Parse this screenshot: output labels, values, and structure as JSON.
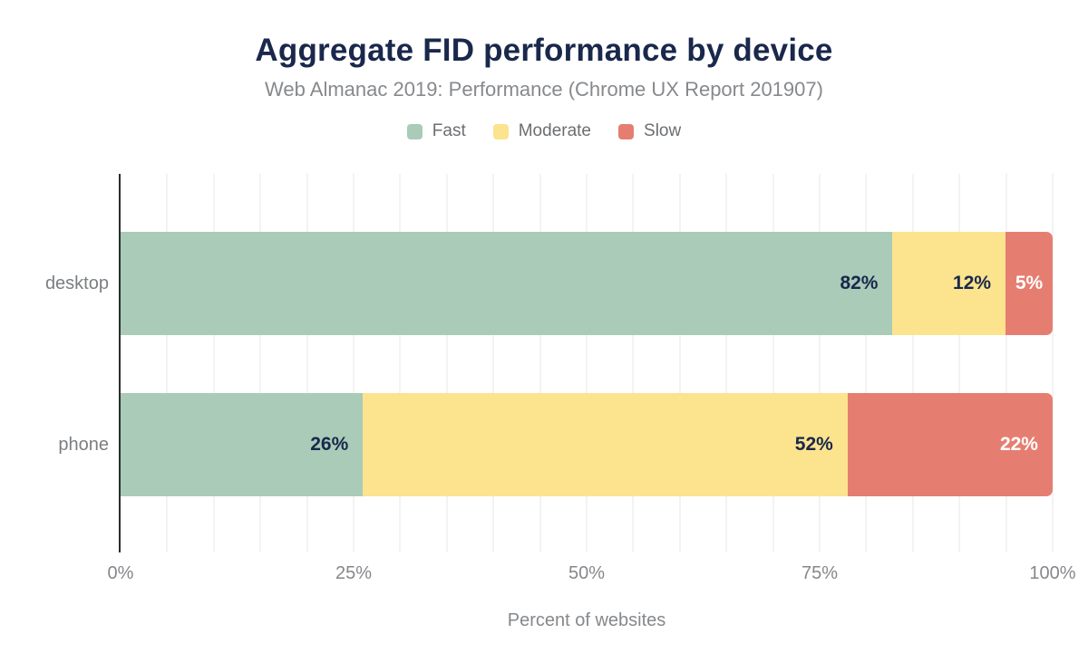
{
  "title": "Aggregate FID performance by device",
  "subtitle": "Web Almanac 2019: Performance (Chrome UX Report 201907)",
  "colors": {
    "title_navy": "#19284b",
    "fast_green": "#a9cbb8",
    "moderate_yellow": "#fce38e",
    "slow_red": "#e57e71",
    "axis_gray": "#85878a",
    "grid_gray": "#f3f3f3",
    "axis_line_dark": "#2a2c2e",
    "label_on_light": "#19284b",
    "label_on_red": "#ffffff"
  },
  "chart_data": {
    "type": "bar",
    "orientation": "horizontal",
    "stacked": true,
    "title": "Aggregate FID performance by device",
    "subtitle": "Web Almanac 2019: Performance (Chrome UX Report 201907)",
    "categories": [
      "desktop",
      "phone"
    ],
    "series": [
      {
        "name": "Fast",
        "color": "#a9cbb8",
        "label_color": "#19284b",
        "values": [
          82,
          26
        ]
      },
      {
        "name": "Moderate",
        "color": "#fce38e",
        "label_color": "#19284b",
        "values": [
          12,
          52
        ]
      },
      {
        "name": "Slow",
        "color": "#e57e71",
        "label_color": "#ffffff",
        "values": [
          5,
          22
        ]
      }
    ],
    "data_labels": [
      [
        "82%",
        "12%",
        "5%"
      ],
      [
        "26%",
        "52%",
        "22%"
      ]
    ],
    "xlabel": "Percent of websites",
    "x_ticks": [
      "0%",
      "25%",
      "50%",
      "75%",
      "100%"
    ],
    "x_tick_values": [
      0,
      25,
      50,
      75,
      100
    ],
    "xlim": [
      0,
      100
    ],
    "grid_step_pct": 5,
    "grid": true,
    "legend_position": "top"
  }
}
